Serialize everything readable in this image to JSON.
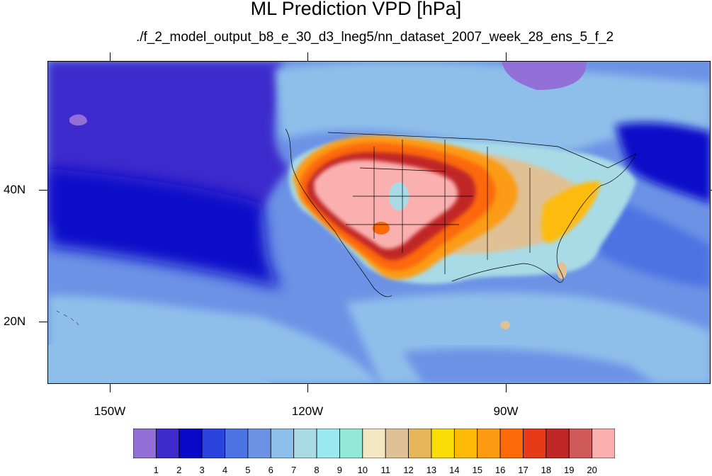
{
  "title": "ML Prediction VPD [hPa]",
  "subtitle": "./f_2_model_output_b8_e_30_d3_lneg5/nn_dataset_2007_week_28_ens_5_f_2",
  "map": {
    "variable": "VPD",
    "units": "hPa",
    "lat_labels": [
      "40N",
      "20N"
    ],
    "lon_labels": [
      "150W",
      "120W",
      "90W"
    ]
  },
  "colorbar": {
    "labels": [
      "1",
      "2",
      "3",
      "4",
      "5",
      "6",
      "7",
      "8",
      "9",
      "10",
      "11",
      "12",
      "13",
      "14",
      "15",
      "16",
      "17",
      "18",
      "19",
      "20"
    ],
    "colors": [
      "#9270d8",
      "#3d2bcc",
      "#0808c9",
      "#2b44dc",
      "#4b73e2",
      "#6c92e6",
      "#8ebfea",
      "#a8dbe6",
      "#9ae9f0",
      "#93e9d8",
      "#f5e6c4",
      "#dfc195",
      "#e6b758",
      "#f9dd05",
      "#fdbb07",
      "#fc9b12",
      "#fc6908",
      "#e63a18",
      "#c02727",
      "#d05a5a",
      "#fbb0b0"
    ]
  }
}
